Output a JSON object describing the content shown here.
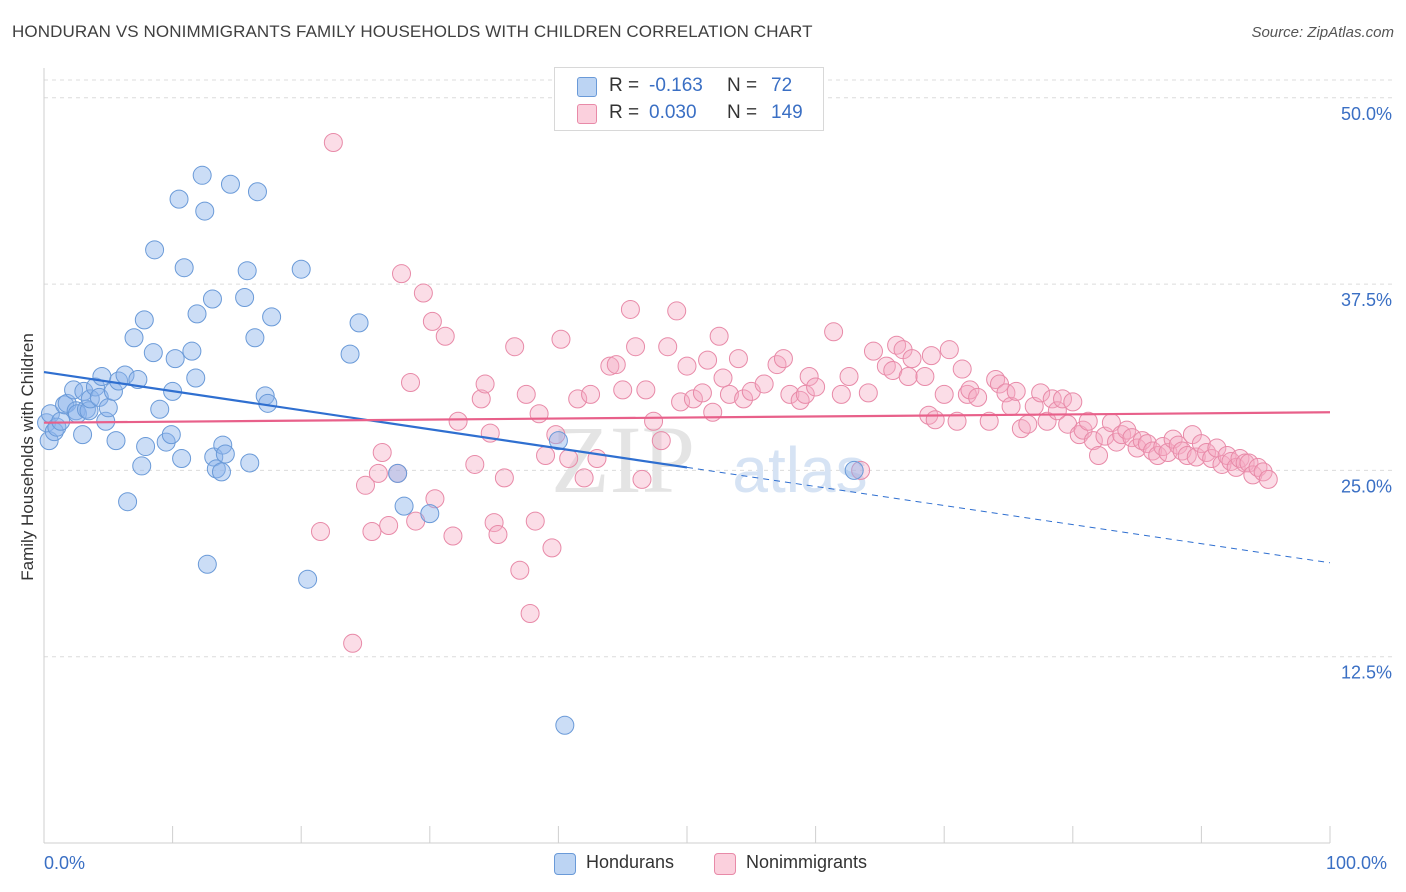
{
  "title": "HONDURAN VS NONIMMIGRANTS FAMILY HOUSEHOLDS WITH CHILDREN CORRELATION CHART",
  "source": "Source: ZipAtlas.com",
  "watermark": {
    "zip": "ZIP",
    "atlas": "atlas"
  },
  "legend_top": [
    {
      "label": "R =",
      "r": "-0.163",
      "n_label": "N =",
      "n": "72",
      "color": "#a9c8f0"
    },
    {
      "label": "R =",
      "r": "0.030",
      "n_label": "N =",
      "n": "149",
      "color": "#f6b8cb"
    }
  ],
  "legend_bottom": [
    {
      "label": "Hondurans",
      "color": "#a9c8f0"
    },
    {
      "label": "Nonimmigrants",
      "color": "#f6b8cb"
    }
  ],
  "colors": {
    "blue_fill": "rgba(140,180,235,0.45)",
    "blue_stroke": "#6a9ad8",
    "blue_line": "#2f6fd0",
    "pink_fill": "rgba(245,170,195,0.40)",
    "pink_stroke": "#e88aa8",
    "pink_line": "#e8608a",
    "tick_text": "#3a6fc4",
    "grid": "#dcdcdc"
  },
  "chart_data": {
    "type": "scatter",
    "title": "HONDURAN VS NONIMMIGRANTS FAMILY HOUSEHOLDS WITH CHILDREN CORRELATION CHART",
    "xlabel": "",
    "ylabel": "Family Households with Children",
    "xlim": [
      0,
      100
    ],
    "ylim": [
      0,
      52
    ],
    "x_ticks": [
      "0.0%",
      "100.0%"
    ],
    "y_ticks": [
      {
        "value": 12.5,
        "label": "12.5%"
      },
      {
        "value": 25.0,
        "label": "25.0%"
      },
      {
        "value": 37.5,
        "label": "37.5%"
      },
      {
        "value": 50.0,
        "label": "50.0%"
      }
    ],
    "grid": true,
    "legend_position": "top-center",
    "series": [
      {
        "name": "Hondurans",
        "r": -0.163,
        "n": 72,
        "trend": {
          "x0": 0,
          "y0": 31.6,
          "x1": 50,
          "y1": 25.2,
          "dashed_to_x": 100,
          "dashed_to_y": 18.8
        },
        "points": [
          [
            0.2,
            28.2
          ],
          [
            0.4,
            27.0
          ],
          [
            0.5,
            28.8
          ],
          [
            0.8,
            27.6
          ],
          [
            1.0,
            27.9
          ],
          [
            1.3,
            28.3
          ],
          [
            1.6,
            29.4
          ],
          [
            1.8,
            29.5
          ],
          [
            2.3,
            30.4
          ],
          [
            2.5,
            29.0
          ],
          [
            2.6,
            28.8
          ],
          [
            3.0,
            27.4
          ],
          [
            3.1,
            30.3
          ],
          [
            3.3,
            29.1
          ],
          [
            3.5,
            29.0
          ],
          [
            3.6,
            29.8
          ],
          [
            4.0,
            30.6
          ],
          [
            4.3,
            29.9
          ],
          [
            4.5,
            31.3
          ],
          [
            4.8,
            28.3
          ],
          [
            5.0,
            29.2
          ],
          [
            5.4,
            30.3
          ],
          [
            5.6,
            27.0
          ],
          [
            5.8,
            31.0
          ],
          [
            6.3,
            31.4
          ],
          [
            6.5,
            22.9
          ],
          [
            7.0,
            33.9
          ],
          [
            7.3,
            31.1
          ],
          [
            7.6,
            25.3
          ],
          [
            7.8,
            35.1
          ],
          [
            7.9,
            26.6
          ],
          [
            8.5,
            32.9
          ],
          [
            8.6,
            39.8
          ],
          [
            9.0,
            29.1
          ],
          [
            9.5,
            26.9
          ],
          [
            9.9,
            27.4
          ],
          [
            10.0,
            30.3
          ],
          [
            10.2,
            32.5
          ],
          [
            10.5,
            43.2
          ],
          [
            10.7,
            25.8
          ],
          [
            10.9,
            38.6
          ],
          [
            11.5,
            33.0
          ],
          [
            11.8,
            31.2
          ],
          [
            11.9,
            35.5
          ],
          [
            12.3,
            44.8
          ],
          [
            12.5,
            42.4
          ],
          [
            12.7,
            18.7
          ],
          [
            13.1,
            36.5
          ],
          [
            13.2,
            25.9
          ],
          [
            13.4,
            25.1
          ],
          [
            13.8,
            24.9
          ],
          [
            13.9,
            26.7
          ],
          [
            14.1,
            26.1
          ],
          [
            14.5,
            44.2
          ],
          [
            15.6,
            36.6
          ],
          [
            15.8,
            38.4
          ],
          [
            16.0,
            25.5
          ],
          [
            16.4,
            33.9
          ],
          [
            16.6,
            43.7
          ],
          [
            17.2,
            30.0
          ],
          [
            17.4,
            29.5
          ],
          [
            17.7,
            35.3
          ],
          [
            20.0,
            38.5
          ],
          [
            20.5,
            17.7
          ],
          [
            23.8,
            32.8
          ],
          [
            24.5,
            34.9
          ],
          [
            27.5,
            24.8
          ],
          [
            28.0,
            22.6
          ],
          [
            30.0,
            22.1
          ],
          [
            40.5,
            7.9
          ],
          [
            63.0,
            25.0
          ],
          [
            40.0,
            27.0
          ]
        ]
      },
      {
        "name": "Nonimmigrants",
        "r": 0.03,
        "n": 149,
        "trend": {
          "x0": 0,
          "y0": 28.2,
          "x1": 100,
          "y1": 28.9
        },
        "points": [
          [
            22.5,
            47.0
          ],
          [
            21.5,
            20.9
          ],
          [
            24.0,
            13.4
          ],
          [
            25.0,
            24.0
          ],
          [
            25.5,
            20.9
          ],
          [
            26.0,
            24.8
          ],
          [
            26.3,
            26.2
          ],
          [
            26.8,
            21.3
          ],
          [
            27.5,
            24.8
          ],
          [
            27.8,
            38.2
          ],
          [
            28.5,
            30.9
          ],
          [
            28.9,
            21.6
          ],
          [
            29.5,
            36.9
          ],
          [
            30.2,
            35.0
          ],
          [
            30.4,
            23.1
          ],
          [
            31.2,
            34.0
          ],
          [
            31.8,
            20.6
          ],
          [
            32.2,
            28.3
          ],
          [
            33.5,
            25.4
          ],
          [
            34.0,
            29.8
          ],
          [
            34.3,
            30.8
          ],
          [
            34.7,
            27.5
          ],
          [
            35.0,
            21.5
          ],
          [
            35.3,
            20.7
          ],
          [
            35.8,
            24.5
          ],
          [
            36.6,
            33.3
          ],
          [
            37.0,
            18.3
          ],
          [
            37.5,
            30.1
          ],
          [
            37.8,
            15.4
          ],
          [
            38.2,
            21.6
          ],
          [
            38.5,
            28.8
          ],
          [
            39.0,
            26.0
          ],
          [
            39.5,
            19.8
          ],
          [
            39.8,
            27.4
          ],
          [
            40.2,
            33.8
          ],
          [
            40.8,
            25.8
          ],
          [
            41.5,
            29.8
          ],
          [
            42.0,
            24.5
          ],
          [
            42.5,
            30.1
          ],
          [
            43.0,
            25.8
          ],
          [
            44.0,
            32.0
          ],
          [
            44.5,
            32.1
          ],
          [
            45.0,
            30.4
          ],
          [
            45.6,
            35.8
          ],
          [
            46.0,
            33.3
          ],
          [
            46.5,
            24.4
          ],
          [
            46.8,
            30.4
          ],
          [
            47.4,
            28.3
          ],
          [
            48.0,
            27.0
          ],
          [
            48.5,
            33.3
          ],
          [
            49.2,
            35.7
          ],
          [
            49.5,
            29.6
          ],
          [
            50.0,
            32.0
          ],
          [
            50.5,
            29.8
          ],
          [
            51.2,
            30.2
          ],
          [
            51.6,
            32.4
          ],
          [
            52.0,
            28.9
          ],
          [
            52.5,
            34.0
          ],
          [
            52.8,
            31.2
          ],
          [
            53.3,
            30.1
          ],
          [
            54.0,
            32.5
          ],
          [
            54.4,
            29.8
          ],
          [
            55.0,
            30.3
          ],
          [
            56.0,
            30.8
          ],
          [
            57.0,
            32.1
          ],
          [
            57.5,
            32.5
          ],
          [
            58.0,
            30.1
          ],
          [
            58.8,
            29.7
          ],
          [
            59.2,
            30.1
          ],
          [
            59.5,
            31.3
          ],
          [
            60.0,
            30.6
          ],
          [
            61.4,
            34.3
          ],
          [
            62.0,
            30.1
          ],
          [
            62.6,
            31.3
          ],
          [
            63.5,
            25.0
          ],
          [
            64.1,
            30.2
          ],
          [
            64.5,
            33.0
          ],
          [
            65.5,
            32.0
          ],
          [
            66.0,
            31.7
          ],
          [
            66.3,
            33.4
          ],
          [
            66.8,
            33.1
          ],
          [
            67.2,
            31.3
          ],
          [
            67.5,
            32.5
          ],
          [
            68.5,
            31.3
          ],
          [
            68.8,
            28.7
          ],
          [
            69.0,
            32.7
          ],
          [
            69.3,
            28.4
          ],
          [
            70.0,
            30.1
          ],
          [
            70.4,
            33.1
          ],
          [
            71.0,
            28.3
          ],
          [
            71.4,
            31.8
          ],
          [
            71.8,
            30.1
          ],
          [
            72.0,
            30.4
          ],
          [
            72.6,
            29.9
          ],
          [
            73.5,
            28.3
          ],
          [
            74.0,
            31.1
          ],
          [
            74.3,
            30.8
          ],
          [
            74.8,
            30.2
          ],
          [
            75.2,
            29.3
          ],
          [
            75.6,
            30.3
          ],
          [
            76.0,
            27.8
          ],
          [
            76.5,
            28.1
          ],
          [
            77.0,
            29.3
          ],
          [
            77.5,
            30.2
          ],
          [
            78.0,
            28.3
          ],
          [
            78.4,
            29.8
          ],
          [
            78.8,
            29.0
          ],
          [
            79.2,
            29.8
          ],
          [
            79.6,
            28.1
          ],
          [
            80.0,
            29.6
          ],
          [
            80.5,
            27.4
          ],
          [
            80.8,
            27.7
          ],
          [
            81.2,
            28.3
          ],
          [
            81.6,
            27.0
          ],
          [
            82.0,
            26.0
          ],
          [
            82.5,
            27.3
          ],
          [
            83.0,
            28.2
          ],
          [
            83.4,
            26.9
          ],
          [
            83.8,
            27.4
          ],
          [
            84.2,
            27.7
          ],
          [
            84.6,
            27.2
          ],
          [
            85.0,
            26.5
          ],
          [
            85.4,
            27.0
          ],
          [
            85.8,
            26.8
          ],
          [
            86.2,
            26.3
          ],
          [
            86.6,
            26.0
          ],
          [
            87.0,
            26.6
          ],
          [
            87.4,
            26.2
          ],
          [
            87.8,
            27.1
          ],
          [
            88.2,
            26.7
          ],
          [
            88.5,
            26.3
          ],
          [
            88.9,
            26.0
          ],
          [
            89.3,
            27.4
          ],
          [
            89.6,
            25.9
          ],
          [
            90.0,
            26.8
          ],
          [
            90.4,
            26.2
          ],
          [
            90.8,
            25.8
          ],
          [
            91.2,
            26.5
          ],
          [
            91.6,
            25.4
          ],
          [
            92.0,
            26.0
          ],
          [
            92.3,
            25.6
          ],
          [
            92.7,
            25.2
          ],
          [
            93.0,
            25.8
          ],
          [
            93.4,
            25.5
          ],
          [
            93.7,
            25.5
          ],
          [
            94.0,
            24.7
          ],
          [
            94.4,
            25.2
          ],
          [
            94.8,
            24.9
          ],
          [
            95.2,
            24.4
          ]
        ]
      }
    ]
  }
}
